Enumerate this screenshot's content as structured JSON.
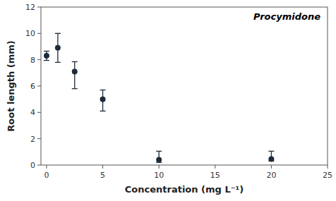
{
  "chart_data": {
    "type": "scatter",
    "x": [
      0,
      1,
      2.5,
      5,
      10,
      20
    ],
    "values": [
      8.3,
      8.9,
      7.1,
      5.0,
      0.4,
      0.45
    ],
    "error_upper": [
      0.35,
      1.1,
      0.75,
      0.7,
      0.65,
      0.6
    ],
    "error_lower": [
      0.35,
      1.1,
      1.3,
      0.9,
      0.2,
      0.15
    ],
    "xlim": [
      -0.5,
      25
    ],
    "ylim": [
      0,
      12
    ],
    "xticks": [
      0,
      5,
      10,
      15,
      20,
      25
    ],
    "yticks": [
      0,
      2,
      4,
      6,
      8,
      10,
      12
    ],
    "xlabel": "Concentration (mg L⁻¹)",
    "ylabel": "Root length (mm)",
    "annotation": "Procymidone",
    "color": "#1c2b3a",
    "marker": "circle",
    "grid": false
  }
}
